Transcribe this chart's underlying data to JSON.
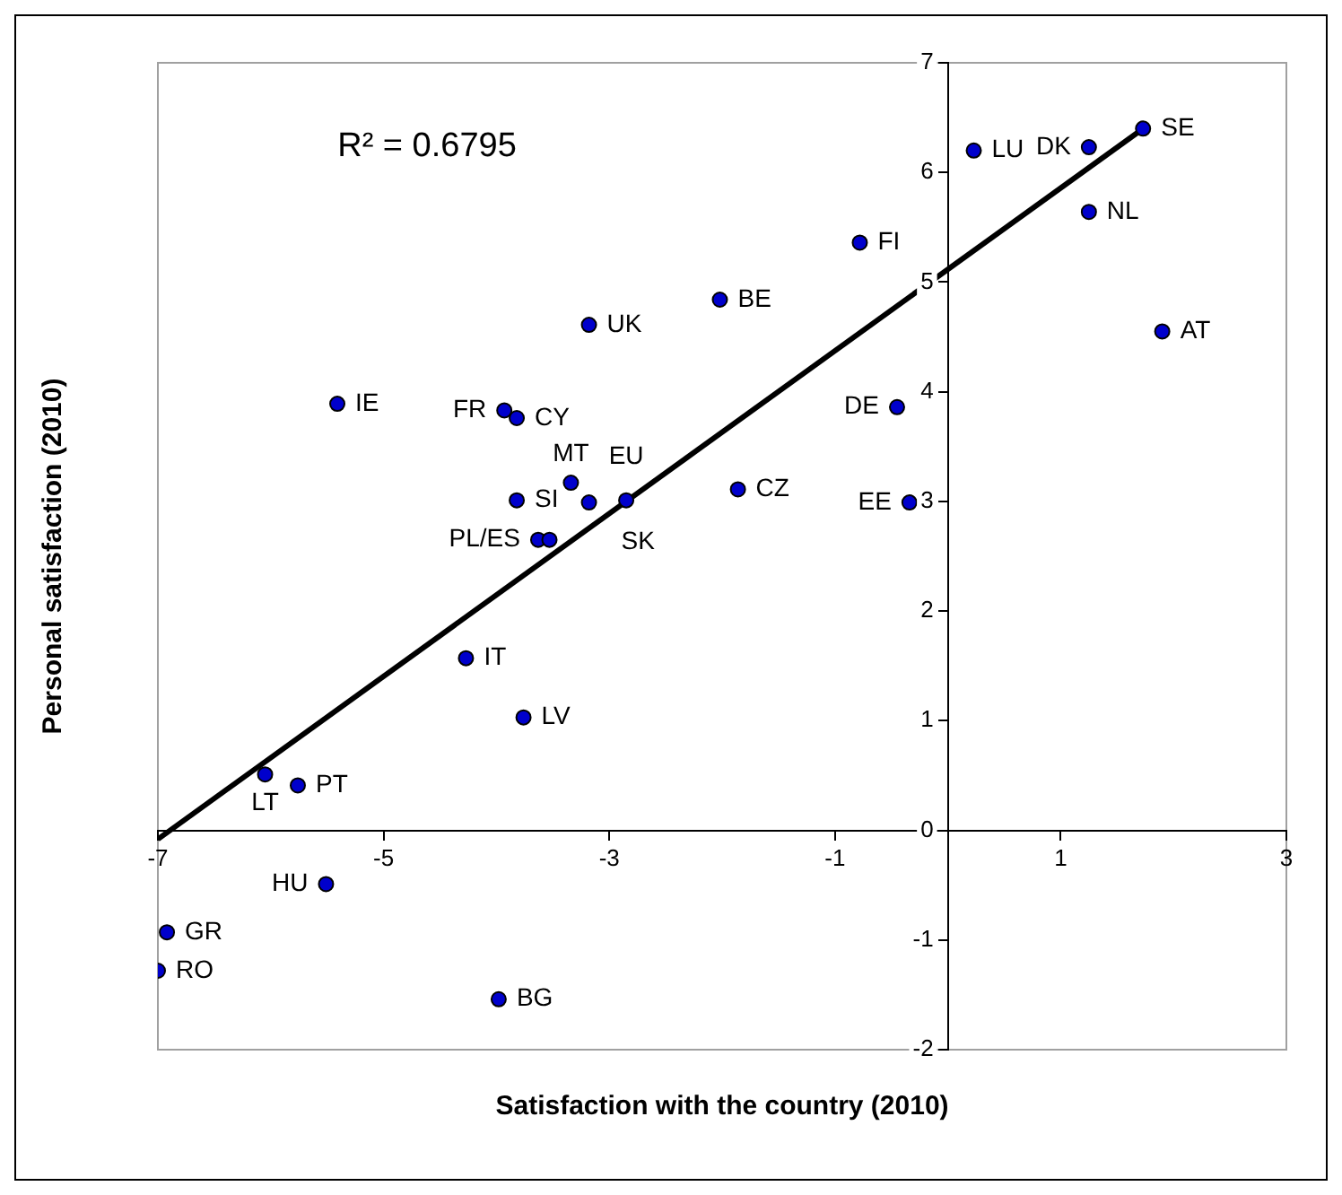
{
  "chart_data": {
    "type": "scatter",
    "xlabel": "Satisfaction with the country (2010)",
    "ylabel": "Personal satisfaction (2010)",
    "xlim": [
      -7,
      3
    ],
    "xticks": [
      -7,
      -5,
      -3,
      -1,
      1,
      3
    ],
    "ylim": [
      -2,
      7
    ],
    "yticks": [
      -2,
      -1,
      0,
      1,
      2,
      3,
      4,
      5,
      6,
      7
    ],
    "grid": false,
    "legend": false,
    "marker": "circle",
    "series": [
      {
        "type": "scatter",
        "color": "#0000cc",
        "x": [
          1.73,
          1.25,
          0.23,
          1.25,
          -0.78,
          1.9,
          -2.02,
          -3.18,
          -0.45,
          -5.41,
          -3.93,
          -3.82,
          -3.34,
          -3.18,
          -3.82,
          -2.85,
          -1.86,
          -0.34,
          -3.63,
          -3.53,
          -4.27,
          -3.76,
          -6.05,
          -5.76,
          -5.51,
          -6.92,
          -7.0,
          -3.98
        ],
        "values": [
          6.4,
          6.23,
          6.2,
          5.64,
          5.36,
          4.55,
          4.84,
          4.61,
          3.86,
          3.89,
          3.83,
          3.76,
          3.17,
          2.99,
          3.01,
          3.01,
          3.11,
          2.99,
          2.65,
          2.65,
          1.57,
          1.03,
          0.51,
          0.41,
          -0.49,
          -0.93,
          -1.28,
          -1.54
        ]
      },
      {
        "type": "line",
        "color": "#000000",
        "marker": "none",
        "x": [
          -7,
          1.73
        ],
        "values": [
          -0.08,
          6.4
        ]
      }
    ],
    "annotations": [
      "R² = 0.6795",
      {
        "text": "SE",
        "x": 1.73,
        "y": 6.4
      },
      {
        "text": "DK",
        "x": 1.25,
        "y": 6.23
      },
      {
        "text": "LU",
        "x": 0.23,
        "y": 6.2
      },
      {
        "text": "NL",
        "x": 1.25,
        "y": 5.64
      },
      {
        "text": "FI",
        "x": -0.78,
        "y": 5.36
      },
      {
        "text": "AT",
        "x": 1.9,
        "y": 4.55
      },
      {
        "text": "BE",
        "x": -2.02,
        "y": 4.84
      },
      {
        "text": "UK",
        "x": -3.18,
        "y": 4.61
      },
      {
        "text": "DE",
        "x": -0.45,
        "y": 3.86
      },
      {
        "text": "IE",
        "x": -5.41,
        "y": 3.89
      },
      {
        "text": "FR",
        "x": -3.93,
        "y": 3.83
      },
      {
        "text": "CY",
        "x": -3.82,
        "y": 3.76
      },
      {
        "text": "MT",
        "x": -3.34,
        "y": 3.17
      },
      {
        "text": "SK",
        "x": -3.18,
        "y": 2.99
      },
      {
        "text": "SI",
        "x": -3.82,
        "y": 3.01
      },
      {
        "text": "EU",
        "x": -2.85,
        "y": 3.01
      },
      {
        "text": "CZ",
        "x": -1.86,
        "y": 3.11
      },
      {
        "text": "EE",
        "x": -0.34,
        "y": 2.99
      },
      {
        "text": "PL/ES",
        "x": -3.63,
        "y": 2.65
      },
      {
        "text": "IT",
        "x": -4.27,
        "y": 1.57
      },
      {
        "text": "LV",
        "x": -3.76,
        "y": 1.03
      },
      {
        "text": "LT",
        "x": -6.05,
        "y": 0.51
      },
      {
        "text": "PT",
        "x": -5.76,
        "y": 0.41
      },
      {
        "text": "HU",
        "x": -5.51,
        "y": -0.49
      },
      {
        "text": "GR",
        "x": -6.92,
        "y": -0.93
      },
      {
        "text": "RO",
        "x": -7.0,
        "y": -1.28
      },
      {
        "text": "BG",
        "x": -3.98,
        "y": -1.54
      }
    ]
  }
}
